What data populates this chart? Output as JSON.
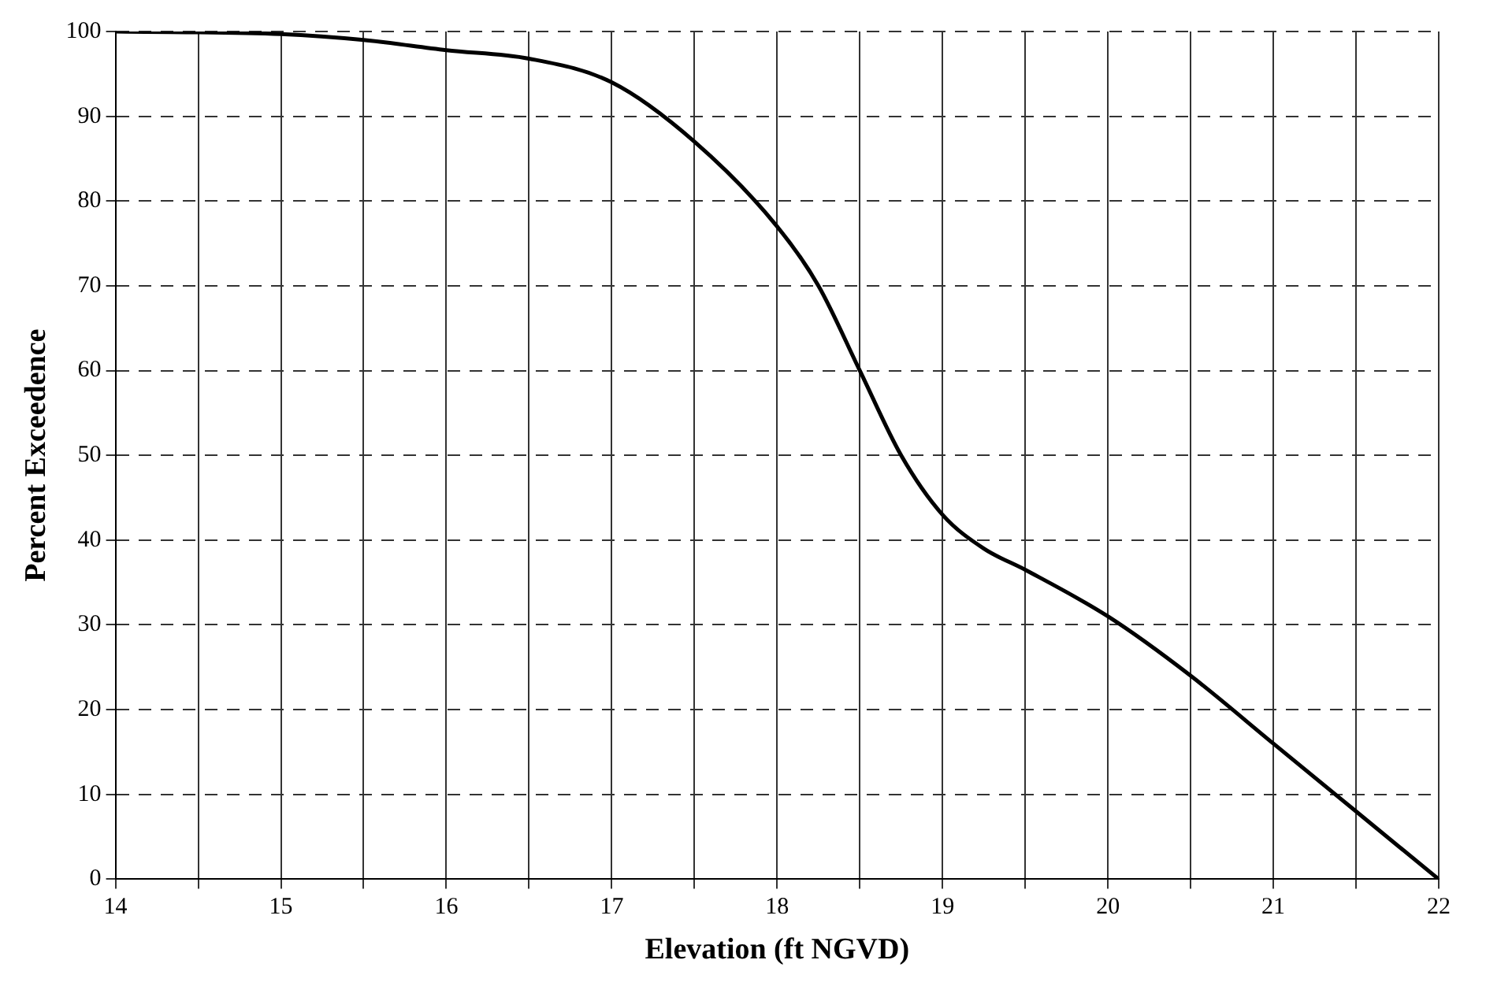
{
  "chart_data": {
    "type": "line",
    "xlabel": "Elevation (ft NGVD)",
    "ylabel": "Percent Exceedence",
    "x": [
      14,
      15,
      15.5,
      16,
      16.5,
      17,
      17.5,
      18,
      18.25,
      18.5,
      18.75,
      19,
      19.25,
      19.5,
      20,
      20.5,
      21,
      21.5,
      22
    ],
    "series": [
      {
        "color": "#000000",
        "values": [
          100,
          99.7,
          99,
          97.8,
          96.8,
          94,
          87,
          77,
          70,
          60,
          50,
          43,
          39,
          36.5,
          31,
          24,
          16,
          8,
          0
        ]
      }
    ],
    "xlim": [
      14,
      22
    ],
    "xticks": [
      14,
      {
        "value": 14.5,
        "label": null
      },
      15,
      {
        "value": 15.5,
        "label": null
      },
      16,
      {
        "value": 16.5,
        "label": null
      },
      17,
      {
        "value": 17.5,
        "label": null
      },
      18,
      {
        "value": 18.5,
        "label": null
      },
      19,
      {
        "value": 19.5,
        "label": null
      },
      20,
      {
        "value": 20.5,
        "label": null
      },
      21,
      {
        "value": 21.5,
        "label": null
      },
      22
    ],
    "ylim": [
      0,
      100
    ],
    "yticks": [
      0,
      10,
      20,
      30,
      40,
      50,
      60,
      70,
      80,
      90,
      100
    ],
    "grid": true,
    "legend": false,
    "marker": "none",
    "line_style": "solid"
  }
}
